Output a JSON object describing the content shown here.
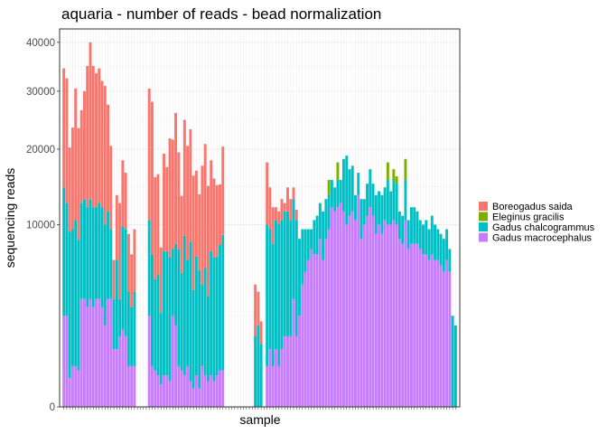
{
  "chart_data": {
    "type": "bar",
    "stacked": true,
    "title": "aquaria - number of reads - bead normalization",
    "xlabel": "sample",
    "ylabel": "sequencing reads",
    "y_scale": "sqrt",
    "ylim": [
      0,
      43000
    ],
    "yticks": [
      0,
      10000,
      20000,
      30000,
      40000
    ],
    "ytick_labels": [
      "0",
      "10000",
      "20000",
      "30000",
      "40000"
    ],
    "grid": true,
    "legend_position": "right",
    "series": [
      {
        "name": "Boreogadus saida",
        "color": "#F8766D",
        "values": [
          20000,
          20000,
          11000,
          14000,
          20000,
          15000,
          14000,
          17000,
          23000,
          27000,
          23000,
          21500,
          22000,
          20000,
          21000,
          16000,
          11000,
          3000,
          7000,
          9000,
          8500,
          7000,
          5000,
          4000,
          5500,
          0,
          0,
          0,
          0,
          20000,
          21000,
          11000,
          11000,
          5000,
          12000,
          10000,
          15000,
          14000,
          18000,
          12000,
          8000,
          16000,
          14000,
          15000,
          12000,
          10000,
          8000,
          13000,
          15000,
          11000,
          11000,
          9000,
          8000,
          7000,
          11500,
          0,
          0,
          0,
          0,
          0,
          0,
          0,
          0,
          0,
          0,
          3000,
          2000,
          1000,
          0,
          8000,
          5000,
          4000,
          1500,
          1500,
          2500,
          1000,
          3000,
          2500,
          1500,
          1200,
          0,
          0,
          0,
          0,
          0,
          0,
          0,
          0,
          0,
          0,
          0,
          0,
          0,
          0,
          0,
          0,
          0,
          0,
          0,
          0,
          0,
          0,
          0,
          0,
          0,
          0,
          0,
          0,
          0,
          0,
          0,
          0,
          0,
          0,
          0,
          0,
          0,
          0,
          0,
          0,
          0,
          0,
          0,
          0,
          0,
          0,
          0,
          0,
          0,
          0,
          0,
          0,
          0,
          0
        ]
      },
      {
        "name": "Eleginus gracilis",
        "color": "#7CAE00",
        "values": [
          0,
          0,
          0,
          0,
          0,
          0,
          0,
          0,
          0,
          0,
          0,
          0,
          0,
          0,
          0,
          0,
          0,
          0,
          0,
          0,
          0,
          0,
          0,
          0,
          0,
          0,
          0,
          0,
          0,
          0,
          0,
          0,
          0,
          0,
          0,
          0,
          0,
          0,
          0,
          0,
          0,
          0,
          0,
          0,
          0,
          0,
          0,
          0,
          0,
          0,
          0,
          0,
          0,
          0,
          0,
          0,
          0,
          0,
          0,
          0,
          0,
          0,
          0,
          0,
          0,
          0,
          0,
          0,
          0,
          0,
          0,
          0,
          0,
          0,
          0,
          0,
          0,
          0,
          0,
          0,
          0,
          0,
          0,
          0,
          0,
          0,
          0,
          0,
          0,
          0,
          2000,
          0,
          0,
          2500,
          0,
          0,
          0,
          0,
          0,
          0,
          0,
          0,
          0,
          0,
          0,
          0,
          0,
          0,
          0,
          0,
          2500,
          0,
          1500,
          1000,
          0,
          0,
          3000,
          0,
          0,
          0,
          0,
          0,
          0,
          0,
          0,
          0,
          0,
          0,
          0,
          0,
          0,
          0,
          0,
          0
        ]
      },
      {
        "name": "Gadus chalcogrammus",
        "color": "#00BFC4",
        "values": [
          12000,
          10000,
          9000,
          9000,
          10000,
          8000,
          9000,
          9500,
          9000,
          9500,
          9000,
          8500,
          9000,
          9000,
          8000,
          8000,
          6000,
          2500,
          5500,
          2000,
          8000,
          8000,
          3500,
          2500,
          3500,
          0,
          0,
          0,
          0,
          8000,
          6500,
          4500,
          5000,
          2500,
          7000,
          7000,
          6500,
          5000,
          6000,
          7000,
          5000,
          8500,
          6000,
          8000,
          4000,
          6500,
          5500,
          4000,
          5500,
          3500,
          7000,
          6500,
          6500,
          7500,
          8500,
          0,
          0,
          0,
          0,
          0,
          0,
          0,
          0,
          0,
          0,
          1500,
          2000,
          1200,
          0,
          9500,
          8500,
          7500,
          9500,
          9500,
          9500,
          10000,
          10000,
          9000,
          9500,
          9000,
          6000,
          5000,
          4000,
          3000,
          2000,
          3500,
          4000,
          4000,
          5000,
          4500,
          4000,
          3500,
          3000,
          3500,
          3000,
          7000,
          9000,
          6000,
          6000,
          3000,
          3000,
          4500,
          3000,
          4000,
          5000,
          4000,
          4500,
          4000,
          4500,
          4000,
          5500,
          4000,
          5000,
          5000,
          3000,
          3000,
          5000,
          3000,
          4000,
          4000,
          3500,
          3000,
          3000,
          3500,
          3000,
          4000,
          3500,
          3000,
          3000,
          3000,
          3000,
          2000,
          2500,
          2000
        ]
      },
      {
        "name": "Gadus macrocephalus",
        "color": "#C77CFF",
        "values": [
          2500,
          2500,
          250,
          500,
          500,
          400,
          3500,
          3500,
          3000,
          3500,
          3000,
          3500,
          3500,
          3000,
          2000,
          3500,
          3500,
          1000,
          1000,
          1500,
          1800,
          1500,
          500,
          500,
          500,
          0,
          0,
          0,
          0,
          2500,
          500,
          400,
          300,
          150,
          300,
          300,
          200,
          2500,
          2000,
          500,
          400,
          300,
          500,
          200,
          100,
          300,
          100,
          500,
          300,
          200,
          300,
          200,
          300,
          400,
          400,
          0,
          0,
          0,
          0,
          0,
          0,
          0,
          0,
          0,
          0,
          0,
          0,
          0,
          0,
          500,
          1000,
          500,
          1000,
          500,
          1000,
          1500,
          1500,
          1500,
          3500,
          1500,
          2500,
          4500,
          5500,
          6500,
          7500,
          7000,
          7000,
          8500,
          6500,
          8500,
          9500,
          12000,
          11500,
          12000,
          12500,
          11500,
          10000,
          11000,
          11500,
          10500,
          13500,
          8500,
          10000,
          11000,
          12000,
          11000,
          9000,
          10000,
          9000,
          10500,
          10000,
          10000,
          10500,
          10000,
          8500,
          8000,
          10500,
          7500,
          8000,
          8000,
          8000,
          7500,
          7000,
          7000,
          6500,
          7000,
          6500,
          6500,
          6000,
          5500,
          6500,
          5500
        ]
      }
    ]
  }
}
